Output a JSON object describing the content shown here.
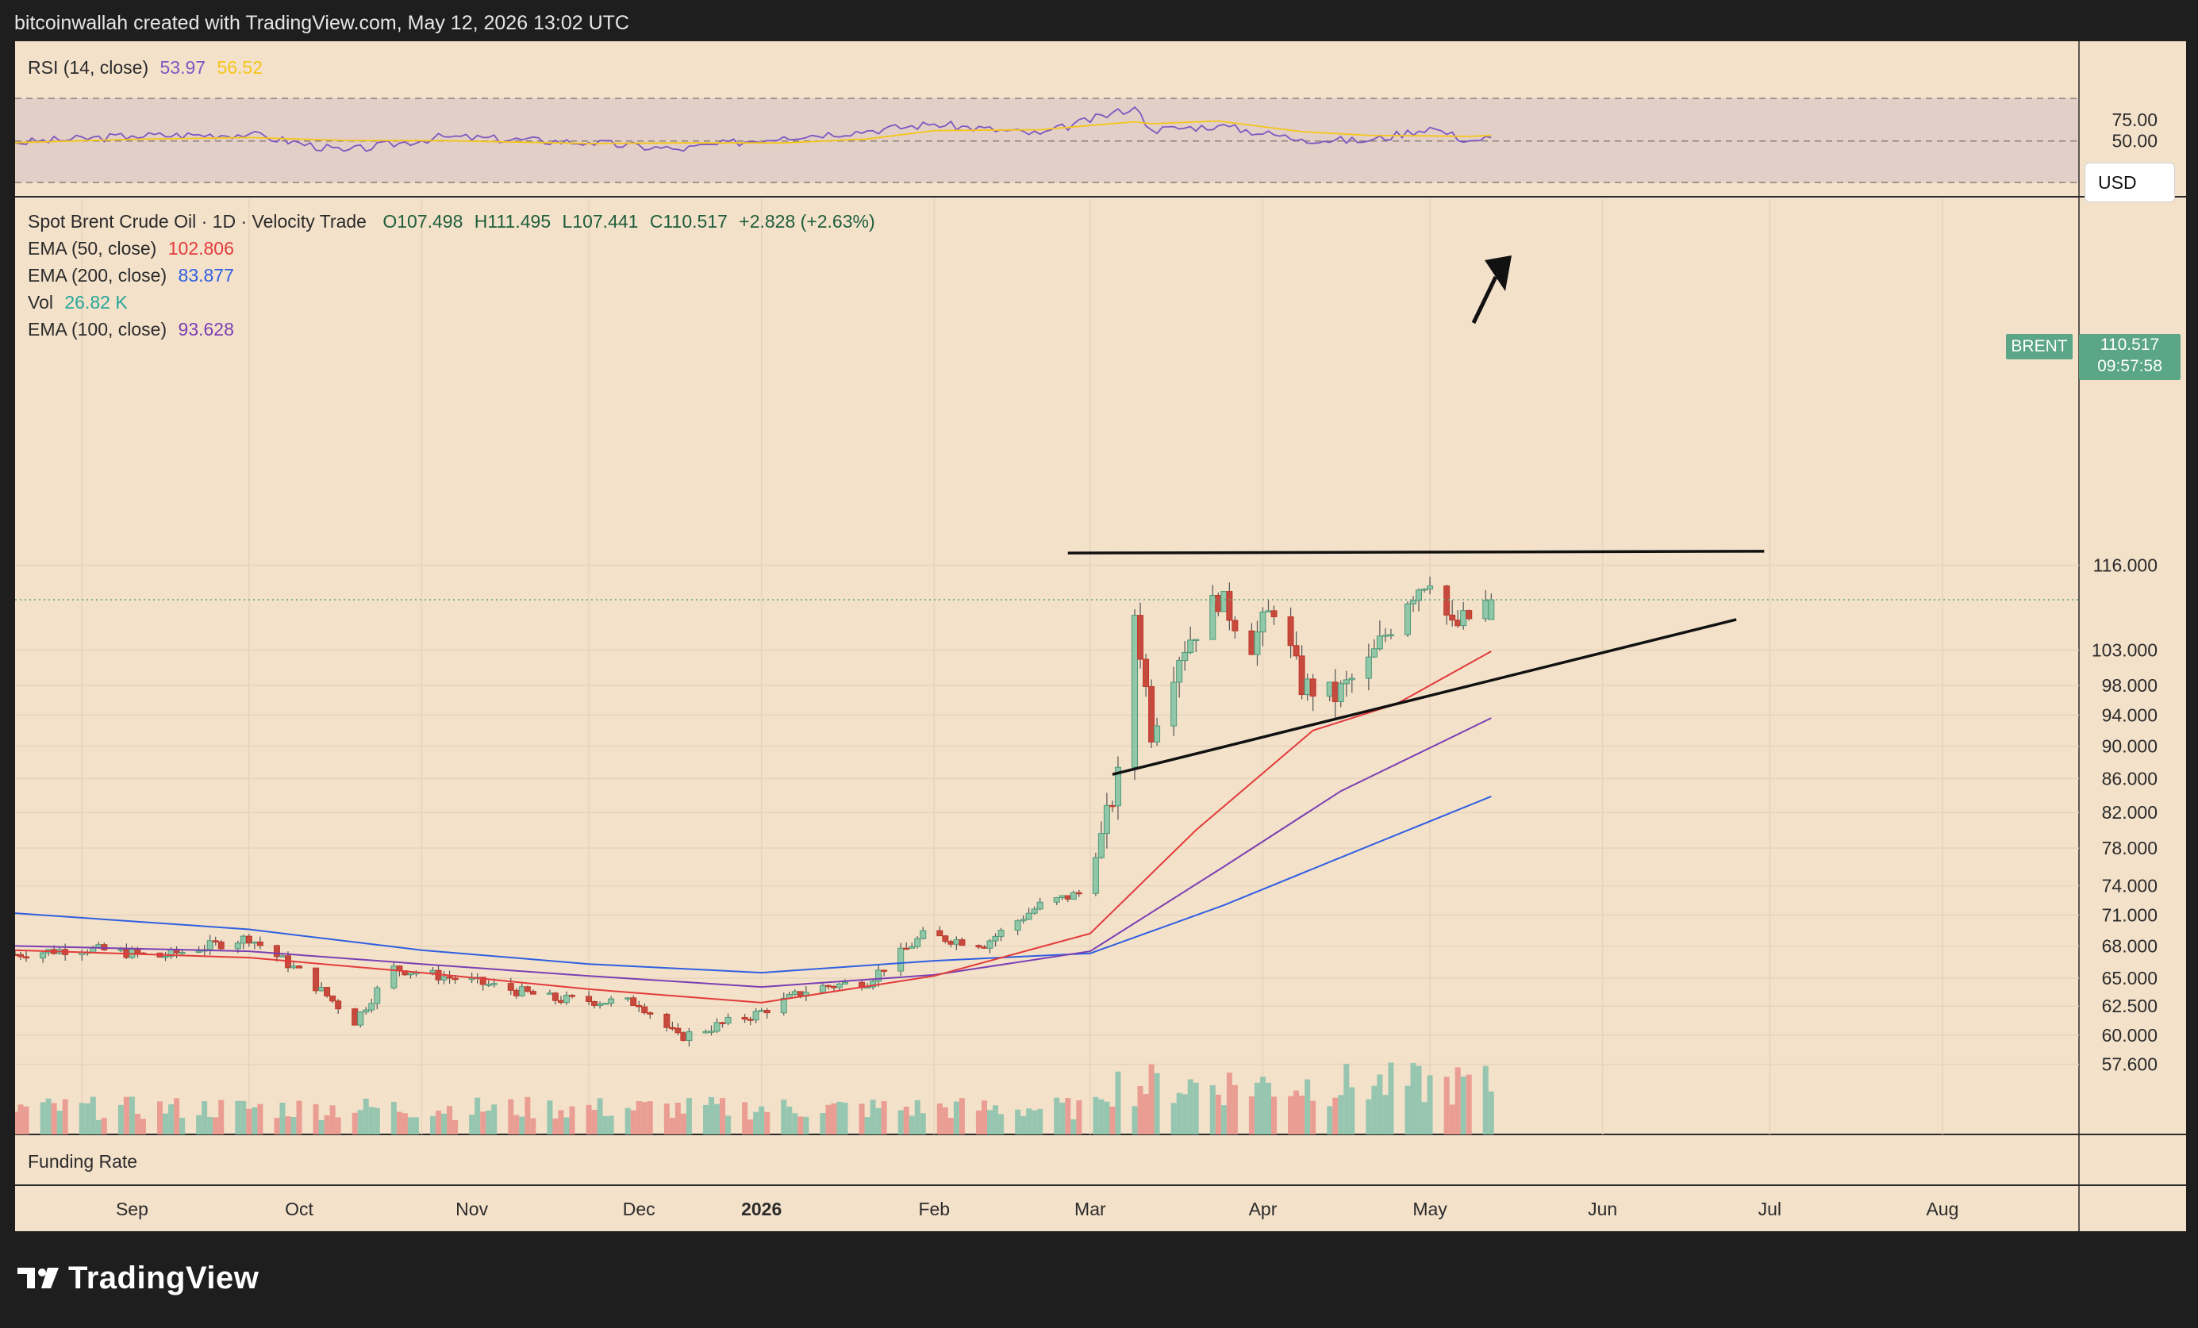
{
  "header": {
    "attribution": "bitcoinwallah created with TradingView.com, May 12, 2026 13:02 UTC"
  },
  "rsi": {
    "label": "RSI (14, close)",
    "rsi_value": "53.97",
    "ma_value": "56.52",
    "levels": [
      "75.00",
      "50.00"
    ],
    "colors": {
      "rsi": "#7e57c2",
      "ma": "#f5c51a"
    }
  },
  "main": {
    "symbol_line": "Spot Brent Crude Oil · 1D · Velocity Trade",
    "ohlc": {
      "o": "O107.498",
      "h": "H111.495",
      "l": "L107.441",
      "c": "C110.517",
      "chg": "+2.828 (+2.63%)"
    },
    "legend": [
      {
        "name": "EMA (50, close)",
        "value": "102.806",
        "color": "#e33b3b"
      },
      {
        "name": "EMA (200, close)",
        "value": "83.877",
        "color": "#2f5fe0"
      },
      {
        "name": "Vol",
        "value": "26.82 K",
        "color": "#26a69a"
      },
      {
        "name": "EMA (100, close)",
        "value": "93.628",
        "color": "#7b3fb3"
      }
    ],
    "currency_button": "USD",
    "last_price": {
      "symbol": "BRENT",
      "price": "110.517",
      "countdown": "09:57:58"
    },
    "price_scale": [
      "116.000",
      "103.000",
      "98.000",
      "94.000",
      "90.000",
      "86.000",
      "82.000",
      "78.000",
      "74.000",
      "71.000",
      "68.000",
      "65.000",
      "62.500",
      "60.000",
      "57.600"
    ]
  },
  "funding": {
    "label": "Funding Rate"
  },
  "time_axis": [
    "Sep",
    "Oct",
    "Nov",
    "Dec",
    "2026",
    "Feb",
    "Mar",
    "Apr",
    "May",
    "Jun",
    "Jul",
    "Aug"
  ],
  "branding": {
    "logo_text": "TradingView"
  },
  "chart_data": {
    "type": "candlestick",
    "title": "Spot Brent Crude Oil · 1D · Velocity Trade",
    "ylim": [
      57.6,
      121
    ],
    "x_range": [
      "2025-08-20",
      "2026-08-31"
    ],
    "last_candle": {
      "date": "2026-05-12",
      "open": 107.498,
      "high": 111.495,
      "low": 107.441,
      "close": 110.517
    },
    "ema_last": {
      "ema50": 102.806,
      "ema100": 93.628,
      "ema200": 83.877
    },
    "price_path": [
      {
        "date": "2025-08-20",
        "close": 67.2
      },
      {
        "date": "2025-09-01",
        "close": 67.8
      },
      {
        "date": "2025-09-15",
        "close": 67.0
      },
      {
        "date": "2025-10-01",
        "close": 68.8
      },
      {
        "date": "2025-10-10",
        "close": 65.6
      },
      {
        "date": "2025-10-20",
        "close": 61.2
      },
      {
        "date": "2025-10-27",
        "close": 65.9
      },
      {
        "date": "2025-11-10",
        "close": 64.7
      },
      {
        "date": "2025-11-25",
        "close": 63.1
      },
      {
        "date": "2025-12-10",
        "close": 62.8
      },
      {
        "date": "2025-12-17",
        "close": 59.8
      },
      {
        "date": "2025-12-31",
        "close": 61.8
      },
      {
        "date": "2026-01-10",
        "close": 64.1
      },
      {
        "date": "2026-01-20",
        "close": 64.7
      },
      {
        "date": "2026-01-30",
        "close": 69.0
      },
      {
        "date": "2026-02-10",
        "close": 68.2
      },
      {
        "date": "2026-02-20",
        "close": 72.0
      },
      {
        "date": "2026-02-27",
        "close": 73.2
      },
      {
        "date": "2026-03-03",
        "close": 79.0
      },
      {
        "date": "2026-03-06",
        "close": 86.0
      },
      {
        "date": "2026-03-09",
        "close": 108.5
      },
      {
        "date": "2026-03-12",
        "close": 92.0
      },
      {
        "date": "2026-03-17",
        "close": 102.5
      },
      {
        "date": "2026-03-24",
        "close": 110.8
      },
      {
        "date": "2026-03-30",
        "close": 104.0
      },
      {
        "date": "2026-04-03",
        "close": 109.5
      },
      {
        "date": "2026-04-08",
        "close": 98.0
      },
      {
        "date": "2026-04-14",
        "close": 96.5
      },
      {
        "date": "2026-04-20",
        "close": 101.0
      },
      {
        "date": "2026-04-27",
        "close": 111.0
      },
      {
        "date": "2026-05-01",
        "close": 114.5
      },
      {
        "date": "2026-05-05",
        "close": 106.0
      },
      {
        "date": "2026-05-08",
        "close": 107.7
      },
      {
        "date": "2026-05-12",
        "close": 110.517
      }
    ],
    "ema50_path": [
      {
        "date": "2025-08-20",
        "v": 67.6
      },
      {
        "date": "2025-10-01",
        "v": 66.9
      },
      {
        "date": "2025-11-01",
        "v": 65.5
      },
      {
        "date": "2025-12-01",
        "v": 64.0
      },
      {
        "date": "2026-01-01",
        "v": 62.8
      },
      {
        "date": "2026-02-01",
        "v": 65.2
      },
      {
        "date": "2026-03-01",
        "v": 69.2
      },
      {
        "date": "2026-03-20",
        "v": 80.0
      },
      {
        "date": "2026-04-10",
        "v": 92.0
      },
      {
        "date": "2026-04-25",
        "v": 95.5
      },
      {
        "date": "2026-05-12",
        "v": 102.806
      }
    ],
    "ema100_path": [
      {
        "date": "2025-08-20",
        "v": 68.0
      },
      {
        "date": "2025-10-01",
        "v": 67.5
      },
      {
        "date": "2025-11-01",
        "v": 66.3
      },
      {
        "date": "2025-12-01",
        "v": 65.2
      },
      {
        "date": "2026-01-01",
        "v": 64.2
      },
      {
        "date": "2026-02-01",
        "v": 65.3
      },
      {
        "date": "2026-03-01",
        "v": 67.5
      },
      {
        "date": "2026-03-25",
        "v": 76.0
      },
      {
        "date": "2026-04-15",
        "v": 84.5
      },
      {
        "date": "2026-05-12",
        "v": 93.628
      }
    ],
    "ema200_path": [
      {
        "date": "2025-08-20",
        "v": 71.2
      },
      {
        "date": "2025-10-01",
        "v": 69.6
      },
      {
        "date": "2025-11-01",
        "v": 67.6
      },
      {
        "date": "2025-12-01",
        "v": 66.3
      },
      {
        "date": "2026-01-01",
        "v": 65.5
      },
      {
        "date": "2026-02-01",
        "v": 66.6
      },
      {
        "date": "2026-03-01",
        "v": 67.3
      },
      {
        "date": "2026-03-25",
        "v": 72.0
      },
      {
        "date": "2026-04-15",
        "v": 77.0
      },
      {
        "date": "2026-05-12",
        "v": 83.877
      }
    ],
    "trendlines": [
      {
        "name": "resistance",
        "from": {
          "date": "2026-02-25",
          "price": 118.0
        },
        "to": {
          "date": "2026-06-30",
          "price": 118.3
        }
      },
      {
        "name": "support",
        "from": {
          "date": "2026-03-05",
          "price": 86.5
        },
        "to": {
          "date": "2026-06-25",
          "price": 107.5
        }
      }
    ],
    "rsi_path": [
      {
        "date": "2025-08-20",
        "v": 48
      },
      {
        "date": "2025-09-10",
        "v": 56
      },
      {
        "date": "2025-10-01",
        "v": 58
      },
      {
        "date": "2025-10-18",
        "v": 38
      },
      {
        "date": "2025-11-05",
        "v": 55
      },
      {
        "date": "2025-12-01",
        "v": 48
      },
      {
        "date": "2025-12-17",
        "v": 40
      },
      {
        "date": "2026-01-05",
        "v": 55
      },
      {
        "date": "2026-01-20",
        "v": 62
      },
      {
        "date": "2026-02-01",
        "v": 70
      },
      {
        "date": "2026-02-20",
        "v": 58
      },
      {
        "date": "2026-03-09",
        "v": 90
      },
      {
        "date": "2026-03-12",
        "v": 63
      },
      {
        "date": "2026-03-24",
        "v": 68
      },
      {
        "date": "2026-04-08",
        "v": 52
      },
      {
        "date": "2026-04-20",
        "v": 50
      },
      {
        "date": "2026-05-01",
        "v": 66
      },
      {
        "date": "2026-05-08",
        "v": 50
      },
      {
        "date": "2026-05-12",
        "v": 53.97
      }
    ]
  }
}
